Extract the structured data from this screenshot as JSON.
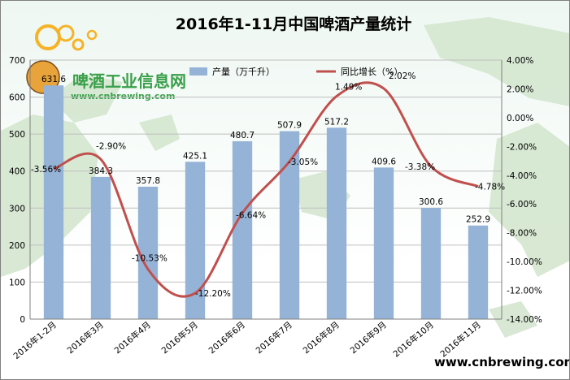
{
  "chart_data": {
    "type": "bar",
    "title": "2016年1-11月中国啤酒产量统计",
    "categories": [
      "2016年1-2月",
      "2016年3月",
      "2016年4月",
      "2016年5月",
      "2016年6月",
      "2016年7月",
      "2016年8月",
      "2016年9月",
      "2016年10月",
      "2016年11月"
    ],
    "series": [
      {
        "name": "产量（万千升）",
        "type": "bar",
        "axis": "left",
        "values": [
          631.6,
          384.3,
          357.8,
          425.1,
          480.7,
          507.9,
          517.2,
          409.6,
          300.6,
          252.9
        ],
        "labels": [
          "631.6",
          "384.3",
          "357.8",
          "425.1",
          "480.7",
          "507.9",
          "517.2",
          "409.6",
          "300.6",
          "252.9"
        ]
      },
      {
        "name": "同比增长（%）",
        "type": "line",
        "axis": "right",
        "smooth": true,
        "values": [
          -3.56,
          -2.9,
          -10.53,
          -12.2,
          -6.64,
          -3.05,
          1.49,
          2.02,
          -3.38,
          -4.78
        ],
        "labels": [
          "-3.56%",
          "-2.90%",
          "-10.53%",
          "-12.20%",
          "-6.64%",
          "-3.05%",
          "1.49%",
          "2.02%",
          "-3.38%",
          "-4.78%"
        ]
      }
    ],
    "y_left": {
      "min": 0,
      "max": 700,
      "step": 100,
      "ticks": [
        "0",
        "100",
        "200",
        "300",
        "400",
        "500",
        "600",
        "700"
      ]
    },
    "y_right": {
      "min": -14,
      "max": 4,
      "step": 2,
      "ticks": [
        "-14.00%",
        "-12.00%",
        "-10.00%",
        "-8.00%",
        "-6.00%",
        "-4.00%",
        "-2.00%",
        "0.00%",
        "2.00%",
        "4.00%"
      ]
    },
    "grid": true,
    "legend": "top",
    "colors": {
      "bar": "#95b3d7",
      "line": "#c0504d",
      "grid": "#bfbfbf"
    }
  },
  "watermark": {
    "brand": "啤酒工业信息网",
    "url": "www.cnbrewing.com",
    "footer_url": "www.cnbrewing.com"
  }
}
